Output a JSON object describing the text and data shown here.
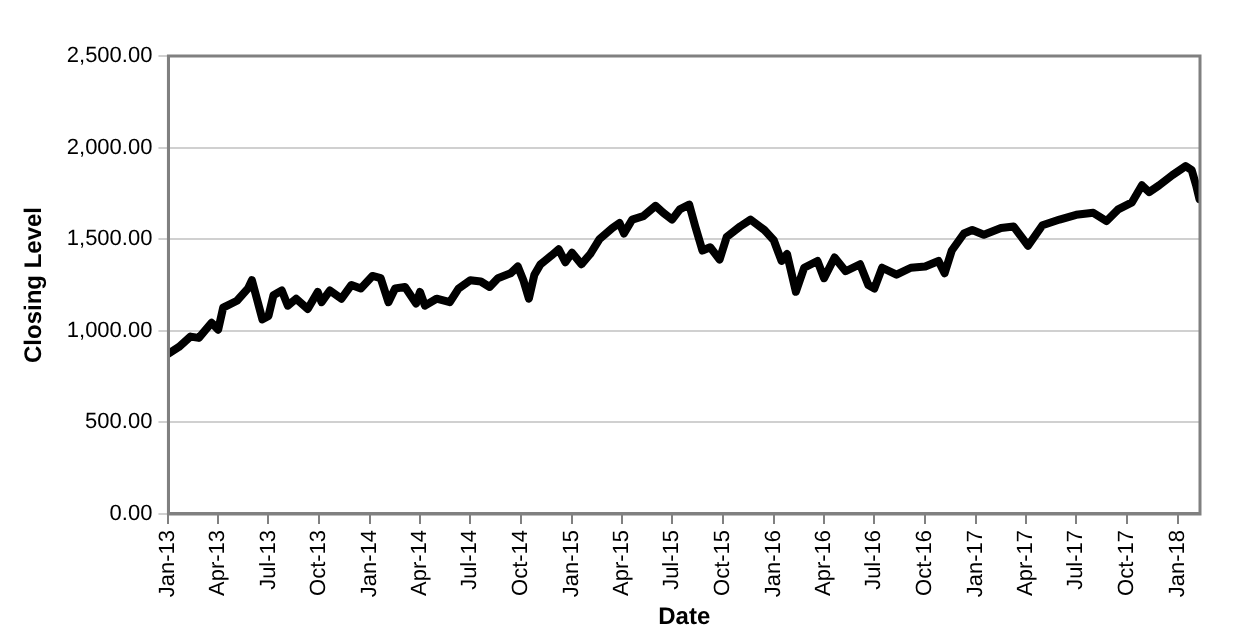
{
  "chart_data": {
    "type": "line",
    "xlabel": "Date",
    "ylabel": "Closing Level",
    "x": [
      "2013-01-01",
      "2013-01-20",
      "2013-02-10",
      "2013-02-25",
      "2013-03-20",
      "2013-04-01",
      "2013-04-10",
      "2013-05-05",
      "2013-05-25",
      "2013-06-01",
      "2013-06-10",
      "2013-06-20",
      "2013-07-01",
      "2013-07-10",
      "2013-07-25",
      "2013-08-05",
      "2013-08-20",
      "2013-09-10",
      "2013-09-28",
      "2013-10-05",
      "2013-10-20",
      "2013-11-10",
      "2013-11-28",
      "2013-12-15",
      "2014-01-05",
      "2014-01-20",
      "2014-02-03",
      "2014-02-15",
      "2014-03-05",
      "2014-03-25",
      "2014-04-01",
      "2014-04-10",
      "2014-05-01",
      "2014-05-25",
      "2014-06-10",
      "2014-07-01",
      "2014-07-20",
      "2014-08-05",
      "2014-08-20",
      "2014-09-12",
      "2014-09-25",
      "2014-10-05",
      "2014-10-15",
      "2014-10-25",
      "2014-11-05",
      "2014-11-25",
      "2014-12-08",
      "2014-12-20",
      "2015-01-01",
      "2015-01-18",
      "2015-02-03",
      "2015-02-20",
      "2015-03-15",
      "2015-03-28",
      "2015-04-05",
      "2015-04-20",
      "2015-05-10",
      "2015-06-01",
      "2015-06-15",
      "2015-07-01",
      "2015-07-15",
      "2015-08-01",
      "2015-08-12",
      "2015-08-25",
      "2015-09-08",
      "2015-09-25",
      "2015-10-08",
      "2015-11-01",
      "2015-11-20",
      "2015-12-15",
      "2016-01-01",
      "2016-01-15",
      "2016-01-25",
      "2016-02-10",
      "2016-02-25",
      "2016-03-20",
      "2016-04-01",
      "2016-04-20",
      "2016-05-10",
      "2016-06-05",
      "2016-06-20",
      "2016-07-01",
      "2016-07-15",
      "2016-08-10",
      "2016-09-05",
      "2016-10-01",
      "2016-10-25",
      "2016-11-05",
      "2016-11-18",
      "2016-12-10",
      "2016-12-25",
      "2017-01-15",
      "2017-02-15",
      "2017-03-10",
      "2017-04-05",
      "2017-05-01",
      "2017-06-01",
      "2017-07-01",
      "2017-08-01",
      "2017-08-25",
      "2017-09-15",
      "2017-10-10",
      "2017-10-28",
      "2017-11-10",
      "2017-11-28",
      "2017-12-22",
      "2018-01-15",
      "2018-01-26",
      "2018-02-03",
      "2018-02-09"
    ],
    "series": [
      {
        "color": "#000000",
        "values": [
          875,
          912,
          968,
          961,
          1044,
          1006,
          1126,
          1164,
          1231,
          1276,
          1175,
          1062,
          1081,
          1194,
          1220,
          1137,
          1175,
          1119,
          1212,
          1156,
          1220,
          1175,
          1250,
          1231,
          1299,
          1287,
          1156,
          1231,
          1239,
          1149,
          1212,
          1137,
          1175,
          1156,
          1231,
          1276,
          1269,
          1239,
          1287,
          1314,
          1351,
          1276,
          1175,
          1306,
          1363,
          1411,
          1445,
          1374,
          1426,
          1363,
          1419,
          1501,
          1561,
          1588,
          1531,
          1607,
          1626,
          1682,
          1644,
          1607,
          1663,
          1689,
          1569,
          1438,
          1456,
          1389,
          1513,
          1569,
          1607,
          1550,
          1494,
          1381,
          1419,
          1213,
          1344,
          1381,
          1287,
          1400,
          1325,
          1363,
          1250,
          1231,
          1344,
          1306,
          1344,
          1351,
          1381,
          1314,
          1438,
          1531,
          1550,
          1524,
          1561,
          1569,
          1464,
          1576,
          1607,
          1633,
          1644,
          1599,
          1663,
          1701,
          1794,
          1757,
          1794,
          1850,
          1899,
          1877,
          1794,
          1719
        ]
      }
    ],
    "xlim": [
      "2013-01-01",
      "2018-02-10"
    ],
    "xticks": [
      {
        "value": "2013-01-01",
        "label": "Jan-13"
      },
      {
        "value": "2013-04-01",
        "label": "Apr-13"
      },
      {
        "value": "2013-07-01",
        "label": "Jul-13"
      },
      {
        "value": "2013-10-01",
        "label": "Oct-13"
      },
      {
        "value": "2014-01-01",
        "label": "Jan-14"
      },
      {
        "value": "2014-04-01",
        "label": "Apr-14"
      },
      {
        "value": "2014-07-01",
        "label": "Jul-14"
      },
      {
        "value": "2014-10-01",
        "label": "Oct-14"
      },
      {
        "value": "2015-01-01",
        "label": "Jan-15"
      },
      {
        "value": "2015-04-01",
        "label": "Apr-15"
      },
      {
        "value": "2015-07-01",
        "label": "Jul-15"
      },
      {
        "value": "2015-10-01",
        "label": "Oct-15"
      },
      {
        "value": "2016-01-01",
        "label": "Jan-16"
      },
      {
        "value": "2016-04-01",
        "label": "Apr-16"
      },
      {
        "value": "2016-07-01",
        "label": "Jul-16"
      },
      {
        "value": "2016-10-01",
        "label": "Oct-16"
      },
      {
        "value": "2017-01-01",
        "label": "Jan-17"
      },
      {
        "value": "2017-04-01",
        "label": "Apr-17"
      },
      {
        "value": "2017-07-01",
        "label": "Jul-17"
      },
      {
        "value": "2017-10-01",
        "label": "Oct-17"
      },
      {
        "value": "2018-01-01",
        "label": "Jan-18"
      }
    ],
    "ylim": [
      0,
      2500
    ],
    "yticks": [
      {
        "value": 0,
        "label": "0.00"
      },
      {
        "value": 500,
        "label": "500.00"
      },
      {
        "value": 1000,
        "label": "1,000.00"
      },
      {
        "value": 1500,
        "label": "1,500.00"
      },
      {
        "value": 2000,
        "label": "2,000.00"
      },
      {
        "value": 2500,
        "label": "2,500.00"
      }
    ],
    "grid": "y",
    "marker": "none",
    "line_style": "solid"
  }
}
